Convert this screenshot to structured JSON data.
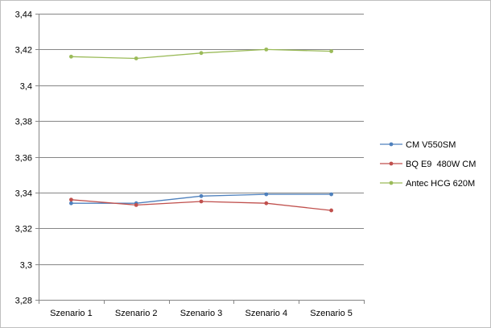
{
  "chart_data": {
    "type": "line",
    "title": "",
    "xlabel": "",
    "ylabel": "",
    "categories": [
      "Szenario 1",
      "Szenario 2",
      "Szenario 3",
      "Szenario 4",
      "Szenario 5"
    ],
    "ylim": [
      3.28,
      3.44
    ],
    "yticks": [
      3.28,
      3.3,
      3.32,
      3.34,
      3.36,
      3.38,
      3.4,
      3.42,
      3.44
    ],
    "ytick_labels": [
      "3,28",
      "3,3",
      "3,32",
      "3,34",
      "3,36",
      "3,38",
      "3,4",
      "3,42",
      "3,44"
    ],
    "grid": true,
    "legend_position": "right",
    "series": [
      {
        "name": "CM V550SM",
        "color": "#4f81bd",
        "values": [
          3.334,
          3.334,
          3.338,
          3.339,
          3.339
        ]
      },
      {
        "name": "BQ E9  480W CM",
        "color": "#c0504d",
        "values": [
          3.336,
          3.333,
          3.335,
          3.334,
          3.33
        ]
      },
      {
        "name": "Antec HCG 620M",
        "color": "#9bbb59",
        "values": [
          3.416,
          3.415,
          3.418,
          3.42,
          3.419
        ]
      }
    ]
  }
}
